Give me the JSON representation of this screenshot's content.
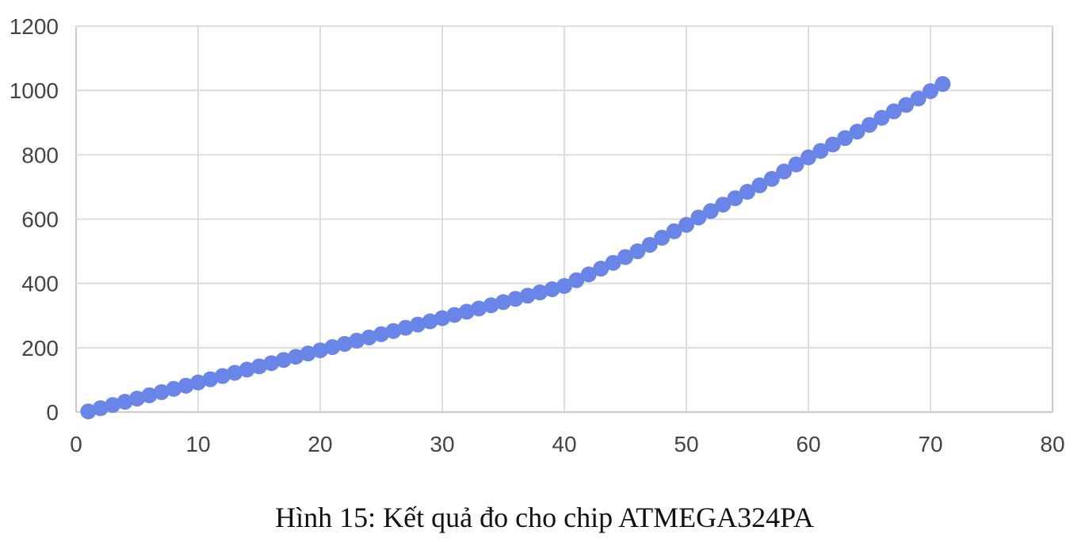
{
  "caption": "Hình 15: Kết quả đo cho chip ATMEGA324PA",
  "colors": {
    "points": "#6a85e8",
    "grid": "#dddddd",
    "axis": "#cccccc",
    "tick_text": "#444444"
  },
  "chart_data": {
    "type": "scatter",
    "title": "",
    "xlabel": "",
    "ylabel": "",
    "xlim": [
      0,
      80
    ],
    "ylim": [
      0,
      1200
    ],
    "x_ticks": [
      0,
      10,
      20,
      30,
      40,
      50,
      60,
      70,
      80
    ],
    "y_ticks": [
      0,
      200,
      400,
      600,
      800,
      1000,
      1200
    ],
    "grid": true,
    "legend": "none",
    "series": [
      {
        "x": [
          1,
          2,
          3,
          4,
          5,
          6,
          7,
          8,
          9,
          10,
          11,
          12,
          13,
          14,
          15,
          16,
          17,
          18,
          19,
          20,
          21,
          22,
          23,
          24,
          25,
          26,
          27,
          28,
          29,
          30,
          31,
          32,
          33,
          34,
          35,
          36,
          37,
          38,
          39,
          40,
          41,
          42,
          43,
          44,
          45,
          46,
          47,
          48,
          49,
          50,
          51,
          52,
          53,
          54,
          55,
          56,
          57,
          58,
          59,
          60,
          61,
          62,
          63,
          64,
          65,
          66,
          67,
          68,
          69,
          70,
          71
        ],
        "y": [
          2,
          12,
          22,
          32,
          42,
          52,
          62,
          72,
          82,
          92,
          102,
          112,
          122,
          132,
          142,
          152,
          162,
          172,
          182,
          192,
          202,
          212,
          222,
          232,
          242,
          252,
          262,
          272,
          282,
          292,
          302,
          312,
          322,
          332,
          342,
          352,
          362,
          372,
          382,
          392,
          410,
          428,
          446,
          464,
          482,
          500,
          520,
          542,
          562,
          582,
          605,
          625,
          645,
          665,
          685,
          705,
          725,
          748,
          770,
          792,
          812,
          832,
          852,
          872,
          893,
          915,
          935,
          955,
          975,
          998,
          1020
        ]
      }
    ]
  }
}
